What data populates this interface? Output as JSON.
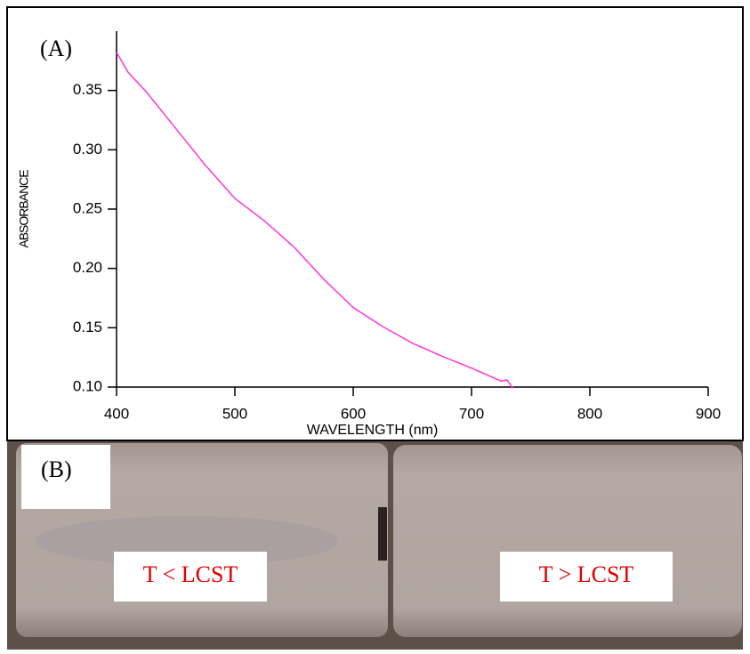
{
  "chart_data": {
    "type": "line",
    "panel_label": "(A)",
    "x_label": "WAVELENGTH (nm)",
    "y_label": "ABSORBANCE",
    "x": [
      400,
      410,
      425,
      450,
      475,
      500,
      525,
      550,
      575,
      600,
      625,
      650,
      675,
      700,
      725,
      730,
      735
    ],
    "series": [
      {
        "color": "#ff33dd",
        "values": [
          0.382,
          0.365,
          0.349,
          0.318,
          0.287,
          0.259,
          0.24,
          0.218,
          0.191,
          0.167,
          0.151,
          0.137,
          0.126,
          0.116,
          0.105,
          0.106,
          0.099
        ]
      }
    ],
    "xlim": [
      400,
      900
    ],
    "ylim": [
      0.1,
      0.4
    ],
    "xticks": [
      400,
      500,
      600,
      700,
      800,
      900
    ],
    "yticks": [
      {
        "value": 0.1,
        "label": "0.10"
      },
      {
        "value": 0.15,
        "label": "0.15"
      },
      {
        "value": 0.2,
        "label": "0.20"
      },
      {
        "value": 0.25,
        "label": "0.25"
      },
      {
        "value": 0.3,
        "label": "0.30"
      },
      {
        "value": 0.35,
        "label": "0.35"
      }
    ],
    "grid": false
  },
  "photo": {
    "label": "(B)",
    "captions": [
      "T < LCST",
      "T > LCST"
    ]
  }
}
